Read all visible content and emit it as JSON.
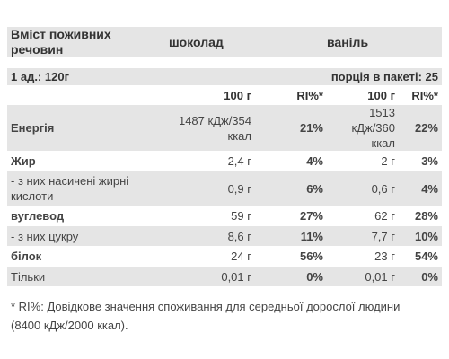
{
  "header": {
    "label": "Вміст поживних речовин",
    "flavor1": "шоколад",
    "flavor2": "ваніль"
  },
  "serving": {
    "unit": "1 ад.: 120г",
    "per_pack": "порція в пакеті: 25"
  },
  "columns": {
    "amount1": "100 г",
    "ri1": "RI%*",
    "amount2": "100 г",
    "ri2": "RI%*"
  },
  "rows": [
    {
      "label": "Енергія",
      "v1": "1487 кДж/354 ккал",
      "p1": "21%",
      "v2": "1513 кДж/360 ккал",
      "p2": "22%"
    },
    {
      "label": "Жир",
      "v1": "2,4 г",
      "p1": "4%",
      "v2": "2 г",
      "p2": "3%"
    },
    {
      "label": "- з них насичені жирні кислоти",
      "v1": "0,9 г",
      "p1": "6%",
      "v2": "0,6 г",
      "p2": "4%"
    },
    {
      "label": "вуглевод",
      "v1": "59 г",
      "p1": "27%",
      "v2": "62 г",
      "p2": "28%"
    },
    {
      "label": "- з них цукру",
      "v1": "8,6 г",
      "p1": "11%",
      "v2": "7,7 г",
      "p2": "10%"
    },
    {
      "label": "білок",
      "v1": "24 г",
      "p1": "56%",
      "v2": "23 г",
      "p2": "54%"
    },
    {
      "label": "Тільки",
      "v1": "0,01 г",
      "p1": "0%",
      "v2": "0,01 г",
      "p2": "0%"
    }
  ],
  "footnote": "* RI%: Довідкове значення споживання для середньої дорослої людини (8400 кДж/2000 ккал)."
}
